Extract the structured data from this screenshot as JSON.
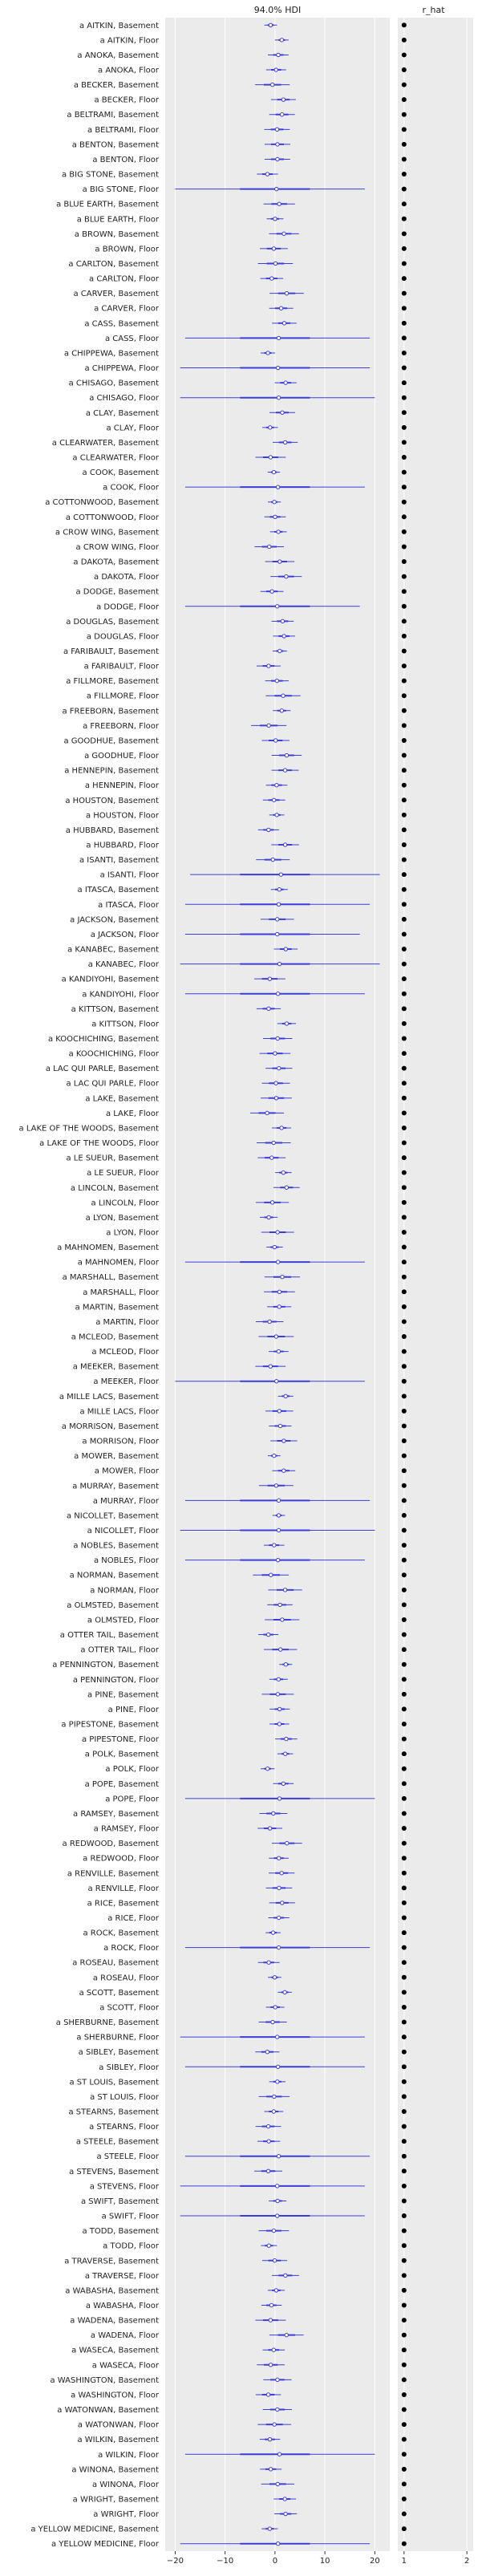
{
  "chart_data": [
    {
      "type": "forest",
      "title": "94.0% HDI",
      "xlim": [
        -22,
        23
      ],
      "xticks": [
        -20,
        -10,
        0,
        10,
        20
      ],
      "grid": true,
      "point_color": "#3c3cd8",
      "background": "#ebebeb",
      "labels": [
        "a AITKIN, Basement",
        "a AITKIN, Floor",
        "a ANOKA, Basement",
        "a ANOKA, Floor",
        "a BECKER, Basement",
        "a BECKER, Floor",
        "a BELTRAMI, Basement",
        "a BELTRAMI, Floor",
        "a BENTON, Basement",
        "a BENTON, Floor",
        "a BIG STONE, Basement",
        "a BIG STONE, Floor",
        "a BLUE EARTH, Basement",
        "a BLUE EARTH, Floor",
        "a BROWN, Basement",
        "a BROWN, Floor",
        "a CARLTON, Basement",
        "a CARLTON, Floor",
        "a CARVER, Basement",
        "a CARVER, Floor",
        "a CASS, Basement",
        "a CASS, Floor",
        "a CHIPPEWA, Basement",
        "a CHIPPEWA, Floor",
        "a CHISAGO, Basement",
        "a CHISAGO, Floor",
        "a CLAY, Basement",
        "a CLAY, Floor",
        "a CLEARWATER, Basement",
        "a CLEARWATER, Floor",
        "a COOK, Basement",
        "a COOK, Floor",
        "a COTTONWOOD, Basement",
        "a COTTONWOOD, Floor",
        "a CROW WING, Basement",
        "a CROW WING, Floor",
        "a DAKOTA, Basement",
        "a DAKOTA, Floor",
        "a DODGE, Basement",
        "a DODGE, Floor",
        "a DOUGLAS, Basement",
        "a DOUGLAS, Floor",
        "a FARIBAULT, Basement",
        "a FARIBAULT, Floor",
        "a FILLMORE, Basement",
        "a FILLMORE, Floor",
        "a FREEBORN, Basement",
        "a FREEBORN, Floor",
        "a GOODHUE, Basement",
        "a GOODHUE, Floor",
        "a HENNEPIN, Basement",
        "a HENNEPIN, Floor",
        "a HOUSTON, Basement",
        "a HOUSTON, Floor",
        "a HUBBARD, Basement",
        "a HUBBARD, Floor",
        "a ISANTI, Basement",
        "a ISANTI, Floor",
        "a ITASCA, Basement",
        "a ITASCA, Floor",
        "a JACKSON, Basement",
        "a JACKSON, Floor",
        "a KANABEC, Basement",
        "a KANABEC, Floor",
        "a KANDIYOHI, Basement",
        "a KANDIYOHI, Floor",
        "a KITTSON, Basement",
        "a KITTSON, Floor",
        "a KOOCHICHING, Basement",
        "a KOOCHICHING, Floor",
        "a LAC QUI PARLE, Basement",
        "a LAC QUI PARLE, Floor",
        "a LAKE, Basement",
        "a LAKE, Floor",
        "a LAKE OF THE WOODS, Basement",
        "a LAKE OF THE WOODS, Floor",
        "a LE SUEUR, Basement",
        "a LE SUEUR, Floor",
        "a LINCOLN, Basement",
        "a LINCOLN, Floor",
        "a LYON, Basement",
        "a LYON, Floor",
        "a MAHNOMEN, Basement",
        "a MAHNOMEN, Floor",
        "a MARSHALL, Basement",
        "a MARSHALL, Floor",
        "a MARTIN, Basement",
        "a MARTIN, Floor",
        "a MCLEOD, Basement",
        "a MCLEOD, Floor",
        "a MEEKER, Basement",
        "a MEEKER, Floor",
        "a MILLE LACS, Basement",
        "a MILLE LACS, Floor",
        "a MORRISON, Basement",
        "a MORRISON, Floor",
        "a MOWER, Basement",
        "a MOWER, Floor",
        "a MURRAY, Basement",
        "a MURRAY, Floor",
        "a NICOLLET, Basement",
        "a NICOLLET, Floor",
        "a NOBLES, Basement",
        "a NOBLES, Floor",
        "a NORMAN, Basement",
        "a NORMAN, Floor",
        "a OLMSTED, Basement",
        "a OLMSTED, Floor",
        "a OTTER TAIL, Basement",
        "a OTTER TAIL, Floor",
        "a PENNINGTON, Basement",
        "a PENNINGTON, Floor",
        "a PINE, Basement",
        "a PINE, Floor",
        "a PIPESTONE, Basement",
        "a PIPESTONE, Floor",
        "a POLK, Basement",
        "a POLK, Floor",
        "a POPE, Basement",
        "a POPE, Floor",
        "a RAMSEY, Basement",
        "a RAMSEY, Floor",
        "a REDWOOD, Basement",
        "a REDWOOD, Floor",
        "a RENVILLE, Basement",
        "a RENVILLE, Floor",
        "a RICE, Basement",
        "a RICE, Floor",
        "a ROCK, Basement",
        "a ROCK, Floor",
        "a ROSEAU, Basement",
        "a ROSEAU, Floor",
        "a SCOTT, Basement",
        "a SCOTT, Floor",
        "a SHERBURNE, Basement",
        "a SHERBURNE, Floor",
        "a SIBLEY, Basement",
        "a SIBLEY, Floor",
        "a ST LOUIS, Basement",
        "a ST LOUIS, Floor",
        "a STEARNS, Basement",
        "a STEARNS, Floor",
        "a STEELE, Basement",
        "a STEELE, Floor",
        "a STEVENS, Basement",
        "a STEVENS, Floor",
        "a SWIFT, Basement",
        "a SWIFT, Floor",
        "a TODD, Basement",
        "a TODD, Floor",
        "a TRAVERSE, Basement",
        "a TRAVERSE, Floor",
        "a WABASHA, Basement",
        "a WABASHA, Floor",
        "a WADENA, Basement",
        "a WADENA, Floor",
        "a WASECA, Basement",
        "a WASECA, Floor",
        "a WASHINGTON, Basement",
        "a WASHINGTON, Floor",
        "a WATONWAN, Basement",
        "a WATONWAN, Floor",
        "a WILKIN, Basement",
        "a WILKIN, Floor",
        "a WINONA, Basement",
        "a WINONA, Floor",
        "a WRIGHT, Basement",
        "a WRIGHT, Floor",
        "a YELLOW MEDICINE, Basement",
        "a YELLOW MEDICINE, Floor"
      ],
      "wide_intervals": {
        "a BIG STONE, Floor": [
          -20,
          18
        ],
        "a CASS, Floor": [
          -18,
          19
        ],
        "a CHIPPEWA, Floor": [
          -19,
          19
        ],
        "a CHISAGO, Floor": [
          -19,
          20
        ],
        "a COOK, Floor": [
          -18,
          18
        ],
        "a DODGE, Floor": [
          -18,
          17
        ],
        "a ISANTI, Floor": [
          -17,
          21
        ],
        "a ITASCA, Floor": [
          -18,
          19
        ],
        "a JACKSON, Floor": [
          -18,
          17
        ],
        "a KANABEC, Floor": [
          -19,
          21
        ],
        "a KANDIYOHI, Floor": [
          -18,
          18
        ],
        "a MAHNOMEN, Floor": [
          -18,
          18
        ],
        "a MEEKER, Floor": [
          -20,
          18
        ],
        "a MURRAY, Floor": [
          -18,
          19
        ],
        "a NICOLLET, Floor": [
          -19,
          20
        ],
        "a NOBLES, Floor": [
          -18,
          18
        ],
        "a POPE, Floor": [
          -18,
          20
        ],
        "a ROCK, Floor": [
          -18,
          19
        ],
        "a SHERBURNE, Floor": [
          -19,
          18
        ],
        "a SIBLEY, Floor": [
          -18,
          18
        ],
        "a STEELE, Floor": [
          -18,
          19
        ],
        "a STEVENS, Floor": [
          -19,
          18
        ],
        "a SWIFT, Floor": [
          -19,
          18
        ],
        "a WILKIN, Floor": [
          -18,
          20
        ],
        "a YELLOW MEDICINE, Floor": [
          -19,
          19
        ]
      }
    },
    {
      "type": "scatter",
      "title": "r_hat",
      "xlim": [
        0.9,
        2.1
      ],
      "xticks": [
        1,
        2
      ],
      "grid": true,
      "point_color": "#000000",
      "background": "#ebebeb",
      "r_hat_value": 1.0
    }
  ]
}
